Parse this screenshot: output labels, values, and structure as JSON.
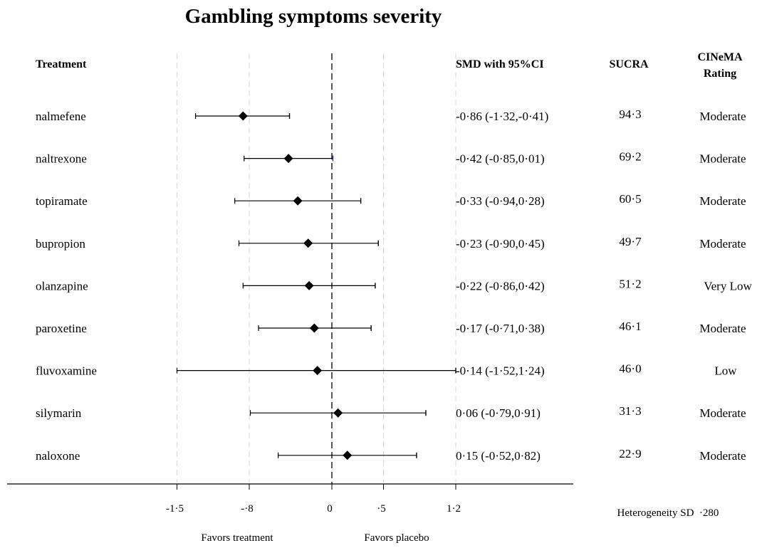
{
  "chart_data": {
    "type": "forest",
    "title": "Gambling symptoms severity",
    "headers": {
      "treatment": "Treatment",
      "smd": "SMD with 95%CI",
      "sucra": "SUCRA",
      "cinema_line1": "CINeMA",
      "cinema_line2": "Rating"
    },
    "rows": [
      {
        "treatment": "nalmefene",
        "smd": -0.86,
        "lo": -1.32,
        "hi": -0.41,
        "smd_text": "-0·86 (-1·32,-0·41)",
        "sucra": "94·3",
        "rating": "Moderate"
      },
      {
        "treatment": "naltrexone",
        "smd": -0.42,
        "lo": -0.85,
        "hi": 0.01,
        "smd_text": "-0·42 (-0·85,0·01)",
        "sucra": "69·2",
        "rating": "Moderate"
      },
      {
        "treatment": "topiramate",
        "smd": -0.33,
        "lo": -0.94,
        "hi": 0.28,
        "smd_text": "-0·33 (-0·94,0·28)",
        "sucra": "60·5",
        "rating": "Moderate"
      },
      {
        "treatment": "bupropion",
        "smd": -0.23,
        "lo": -0.9,
        "hi": 0.45,
        "smd_text": "-0·23 (-0·90,0·45)",
        "sucra": "49·7",
        "rating": "Moderate"
      },
      {
        "treatment": "olanzapine",
        "smd": -0.22,
        "lo": -0.86,
        "hi": 0.42,
        "smd_text": "-0·22 (-0·86,0·42)",
        "sucra": "51·2",
        "rating": "Very Low"
      },
      {
        "treatment": "paroxetine",
        "smd": -0.17,
        "lo": -0.71,
        "hi": 0.38,
        "smd_text": "-0·17 (-0·71,0·38)",
        "sucra": "46·1",
        "rating": "Moderate"
      },
      {
        "treatment": "fluvoxamine",
        "smd": -0.14,
        "lo": -1.52,
        "hi": 1.24,
        "smd_text": "-0·14 (-1·52,1·24)",
        "sucra": "46·0",
        "rating": "Low"
      },
      {
        "treatment": "silymarin",
        "smd": 0.06,
        "lo": -0.79,
        "hi": 0.91,
        "smd_text": "0·06 (-0·79,0·91)",
        "sucra": "31·3",
        "rating": "Moderate"
      },
      {
        "treatment": "naloxone",
        "smd": 0.15,
        "lo": -0.52,
        "hi": 0.82,
        "smd_text": "0·15 (-0·52,0·82)",
        "sucra": "22·9",
        "rating": "Moderate"
      }
    ],
    "x_ticks": [
      {
        "value": -1.5,
        "label": "-1·5"
      },
      {
        "value": -0.8,
        "label": "-·8"
      },
      {
        "value": 0,
        "label": "0"
      },
      {
        "value": 0.5,
        "label": "·5"
      },
      {
        "value": 1.2,
        "label": "1·2"
      }
    ],
    "xlim": [
      -1.5,
      1.2
    ],
    "reference_line": 0,
    "grid": "vertical dashed",
    "favors_left": "Favors treatment",
    "favors_right": "Favors placebo",
    "heterogeneity": "Heterogeneity SD  ·280",
    "colors": {
      "marker": "#000000",
      "grid": "#d9d9d9",
      "upper_whisker_naltrexone": "#1f1fbf"
    }
  }
}
